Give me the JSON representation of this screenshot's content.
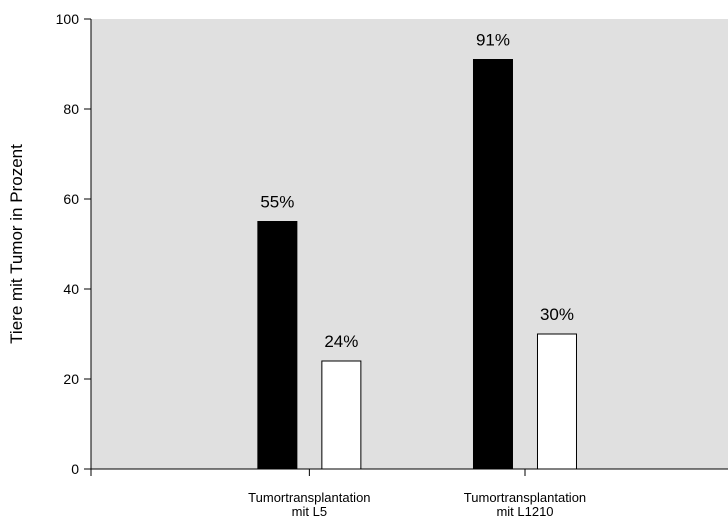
{
  "chart_data": {
    "type": "bar",
    "title": "",
    "xlabel": "",
    "ylabel": "Tiere mit Tumor in Prozent",
    "ylim": [
      0,
      100
    ],
    "yticks": [
      0,
      20,
      40,
      60,
      80,
      100
    ],
    "grid": false,
    "categories": [
      [
        "Tumortransplantation",
        "mit L5"
      ],
      [
        "Tumortransplantation",
        "mit L1210"
      ]
    ],
    "series": [
      {
        "values": [
          55,
          91
        ],
        "labels": [
          "55%",
          "91%"
        ],
        "color": "#000000"
      },
      {
        "values": [
          24,
          30
        ],
        "labels": [
          "24%",
          "30%"
        ],
        "color": "#ffffff"
      }
    ],
    "plot_background": "#e0e0e0"
  }
}
